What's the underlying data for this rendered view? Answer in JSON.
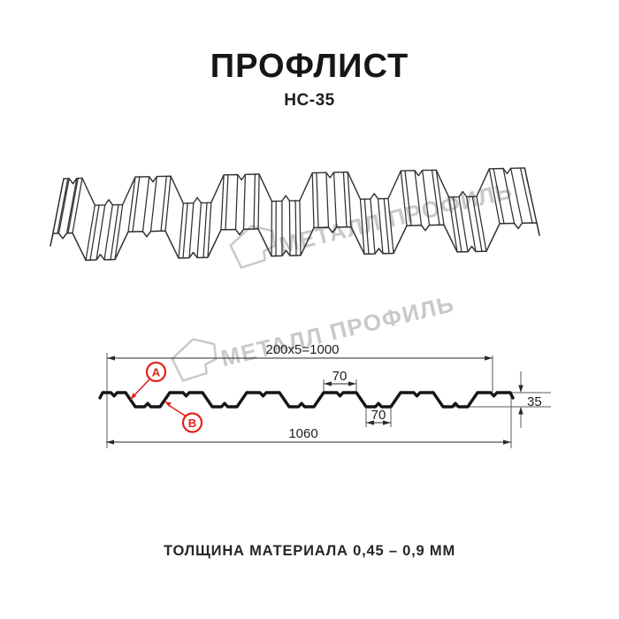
{
  "title": "ПРОФЛИСТ",
  "subtitle": "НС-35",
  "watermark": {
    "text": "МЕТАЛЛ ПРОФИЛЬ"
  },
  "dimensions": {
    "top_total": "200x5=1000",
    "crest_top_width": "70",
    "valley_bottom_width": "70",
    "profile_height": "35",
    "overall_width": "1060"
  },
  "callouts": {
    "a": "A",
    "b": "B"
  },
  "footer_note": "ТОЛЩИНА МАТЕРИАЛА 0,45 – 0,9 ММ",
  "colors": {
    "accent_red": "#e2231a",
    "watermark_gray": "#c9c9c9",
    "line_dark": "#2d2d2d"
  }
}
